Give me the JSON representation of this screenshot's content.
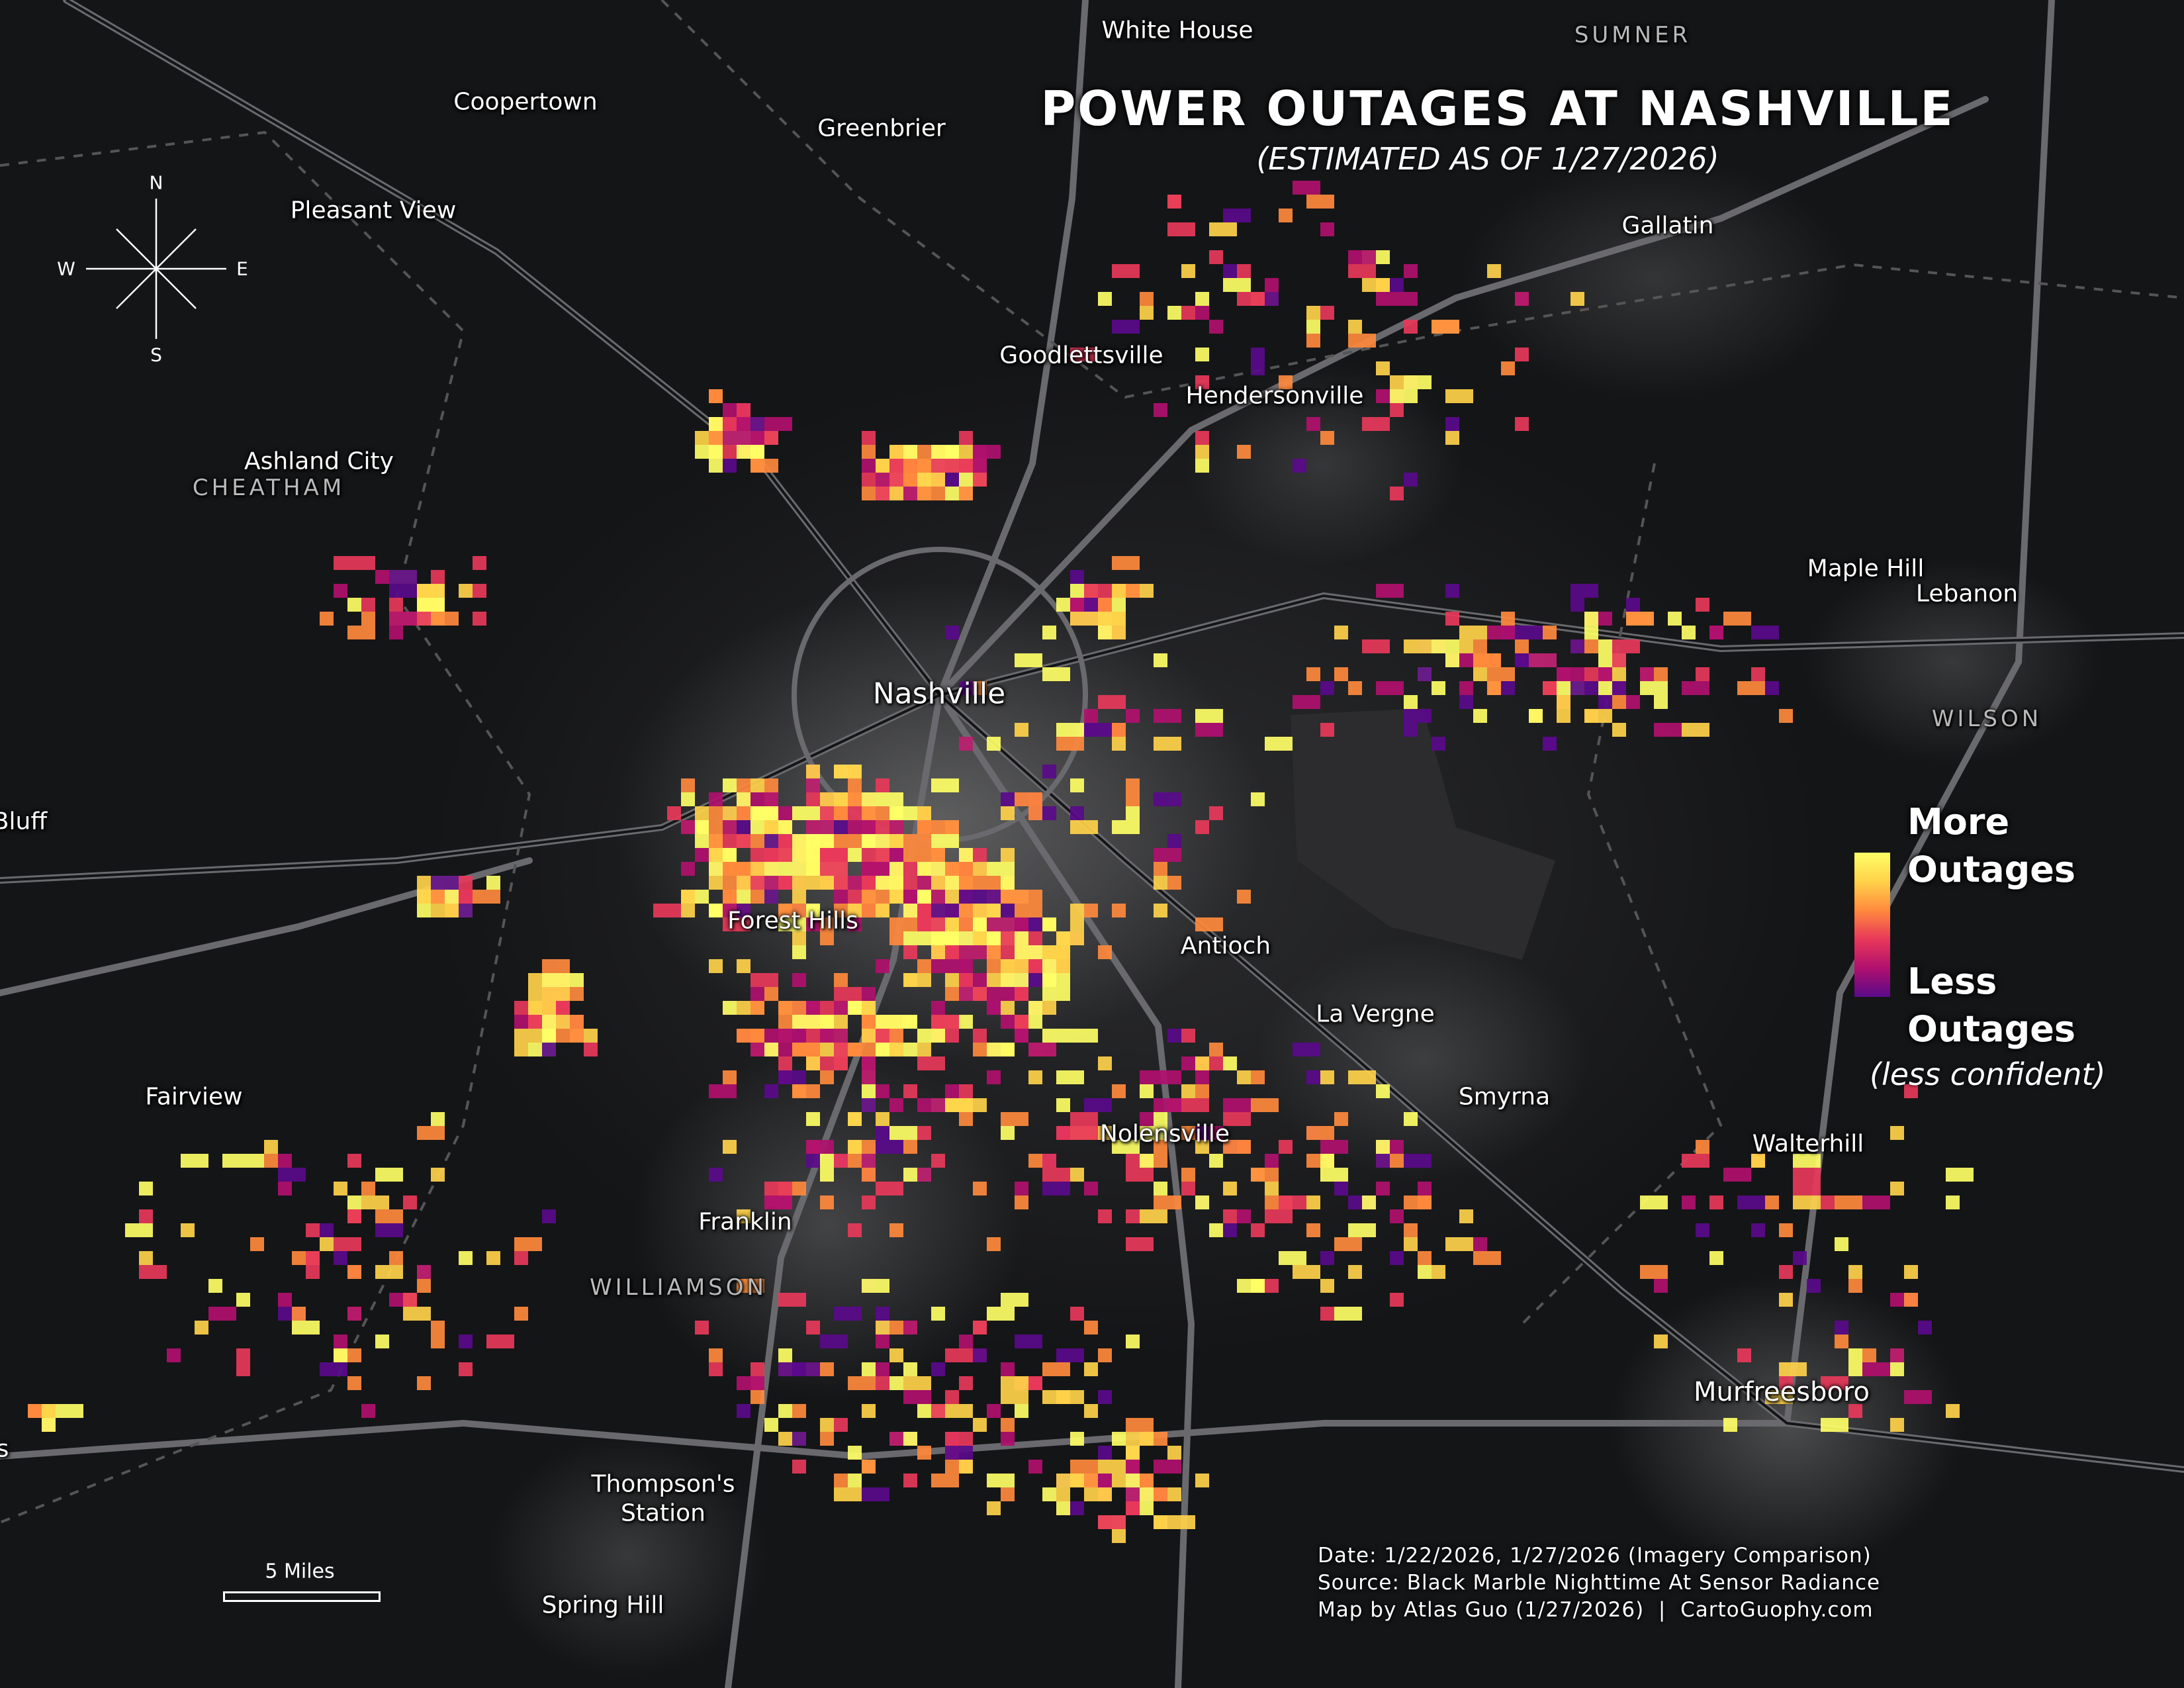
{
  "title": "POWER OUTAGES AT NASHVILLE",
  "subtitle": "(ESTIMATED AS OF 1/27/2026)",
  "compass": {
    "n": "N",
    "s": "S",
    "e": "E",
    "w": "W"
  },
  "places": {
    "white_house": "White House",
    "coopertown": "Coopertown",
    "greenbrier": "Greenbrier",
    "pleasant_view": "Pleasant View",
    "gallatin": "Gallatin",
    "goodlettsville": "Goodlettsville",
    "hendersonville": "Hendersonville",
    "ashland_city": "Ashland City",
    "maple_hill": "Maple Hill",
    "lebanon": "Lebanon",
    "nashville": "Nashville",
    "bluff": "Bluff",
    "forest_hills": "Forest Hills",
    "antioch": "Antioch",
    "la_vergne": "La Vergne",
    "fairview": "Fairview",
    "smyrna": "Smyrna",
    "nolensville": "Nolensville",
    "walterhill": "Walterhill",
    "franklin": "Franklin",
    "murfreesboro": "Murfreesboro",
    "thompsons_station_1": "Thompson's",
    "thompsons_station_2": "Station",
    "spring_hill": "Spring Hill",
    "edge_s": "s"
  },
  "counties": {
    "sumner": "SUMNER",
    "cheatham": "CHEATHAM",
    "wilson": "WILSON",
    "williamson": "WILLIAMSON"
  },
  "legend": {
    "more_1": "More",
    "more_2": "Outages",
    "less_1": "Less",
    "less_2": "Outages",
    "note": "(less confident)",
    "colors": [
      "#ffff66",
      "#ffd24a",
      "#ff8a3d",
      "#e8385a",
      "#b0106e",
      "#5a0a8a"
    ]
  },
  "scale": {
    "label": "5 Miles"
  },
  "credits": {
    "date": "Date: 1/22/2026, 1/27/2026 (Imagery Comparison)",
    "source": "Source: Black Marble Nighttime At Sensor Radiance",
    "author": "Map by Atlas Guo (1/27/2026)  |  CartoGuophy.com"
  }
}
